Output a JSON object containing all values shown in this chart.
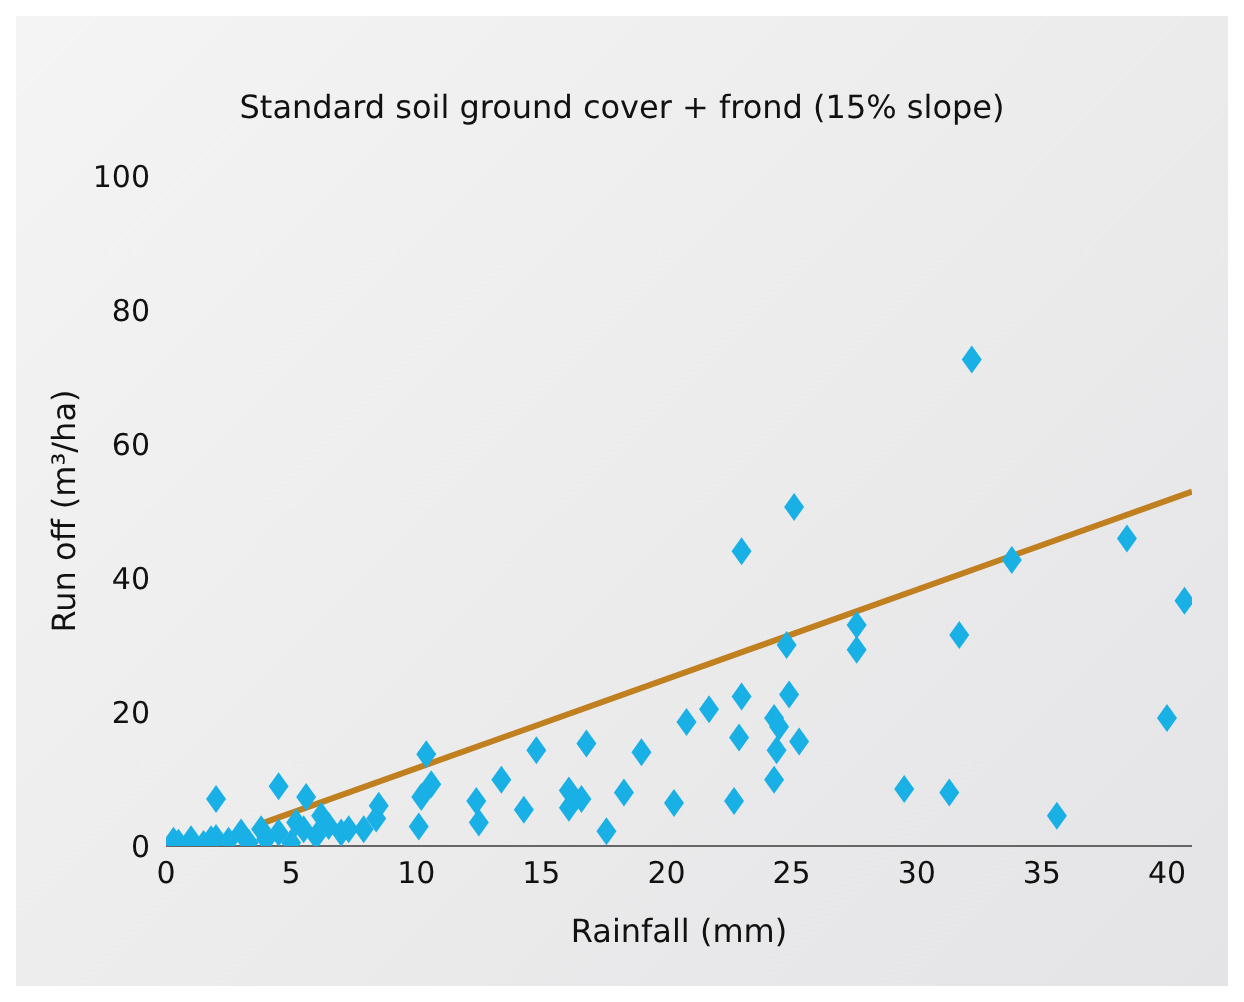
{
  "chart_data": {
    "type": "scatter",
    "title": "Standard soil ground cover + frond  (15% slope)",
    "xlabel": "Rainfall (mm)",
    "ylabel": "Run off (m³/ha)",
    "xlim": [
      0,
      41
    ],
    "xticks": [
      0,
      5,
      10,
      15,
      20,
      25,
      30,
      35,
      40
    ],
    "ylim": [
      0,
      100
    ],
    "yticks": [
      0,
      20,
      40,
      60,
      80,
      100
    ],
    "grid": false,
    "legend": false,
    "series": [
      {
        "marker": "diamond",
        "color": "#19b0e6",
        "x": [
          0.3,
          0.5,
          1,
          1.5,
          1.8,
          2,
          2.5,
          3,
          3.3,
          3.8,
          4,
          4.5,
          5,
          5.2,
          5.5,
          6,
          6.2,
          6.5,
          7,
          2,
          4.5,
          5.6,
          7.3,
          7.9,
          8.4,
          8.5,
          10.1,
          10.2,
          10.4,
          10.6,
          12.4,
          12.5,
          13.4,
          14.3,
          14.8,
          16.1,
          16.1,
          16.6,
          16.8,
          17.6,
          18.3,
          19,
          20.3,
          20.8,
          21.7,
          22.7,
          22.9,
          23,
          23,
          24.3,
          24.3,
          24.4,
          24.5,
          24.8,
          24.9,
          25.1,
          25.3,
          27.6,
          27.6,
          29.5,
          31.3,
          31.7,
          32.2,
          33.8,
          35.6,
          38.4,
          40,
          40.7
        ],
        "values": [
          0.8,
          0.5,
          1,
          0.3,
          1,
          1.2,
          0.8,
          2,
          0.5,
          2.5,
          1,
          2,
          0.5,
          3.5,
          2.5,
          1.5,
          4.5,
          3,
          2,
          7,
          8.9,
          7.3,
          2.5,
          2.5,
          4.1,
          6,
          2.9,
          7.3,
          13.7,
          9.2,
          6.7,
          3.5,
          9.9,
          5.4,
          14.3,
          8.3,
          5.7,
          7,
          15.3,
          2.2,
          8,
          14,
          6.4,
          18.5,
          20.4,
          6.7,
          16.2,
          22.3,
          44,
          9.9,
          19.1,
          14.3,
          17.8,
          30,
          22.6,
          50.6,
          15.6,
          33,
          29.3,
          8.5,
          8,
          31.5,
          72.6,
          42.7,
          4.5,
          45.9,
          19.1,
          36.6
        ]
      },
      {
        "type": "line",
        "color": "#c08020",
        "x": [
          3.7,
          41
        ],
        "values": [
          3.2,
          52.9
        ]
      }
    ]
  }
}
